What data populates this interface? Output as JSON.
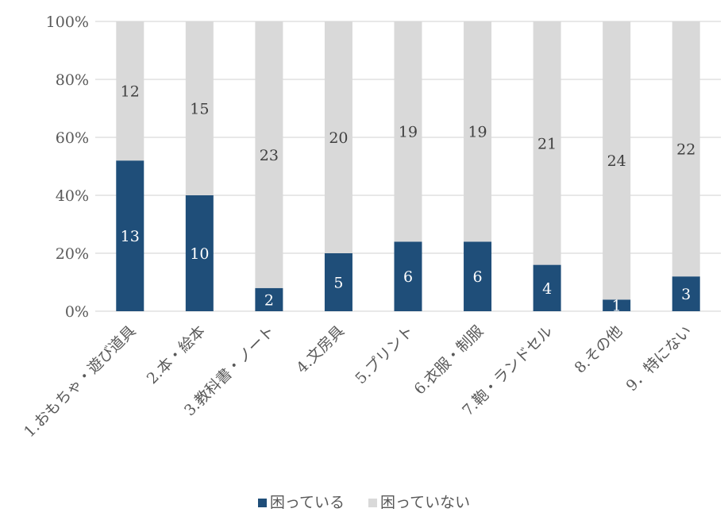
{
  "chart_data": {
    "type": "bar",
    "stacked": "percent",
    "categories": [
      "1.おもちゃ・遊び道具",
      "2.本・絵本",
      "3.教科書・ノート",
      "4.文房具",
      "5.プリント",
      "6.衣服・制服",
      "7.鞄・ランドセル",
      "8.その他",
      "9．特にない"
    ],
    "series": [
      {
        "name": "困っている",
        "color": "#1f4e79",
        "values": [
          13,
          10,
          2,
          5,
          6,
          6,
          4,
          1,
          3
        ]
      },
      {
        "name": "困っていない",
        "color": "#d9d9d9",
        "values": [
          12,
          15,
          23,
          20,
          19,
          19,
          21,
          24,
          22
        ]
      }
    ],
    "y_ticks": [
      "0%",
      "20%",
      "40%",
      "60%",
      "80%",
      "100%"
    ],
    "ylim": [
      0,
      100
    ],
    "grid": true,
    "legend_position": "bottom",
    "title": "",
    "xlabel": "",
    "ylabel": ""
  }
}
